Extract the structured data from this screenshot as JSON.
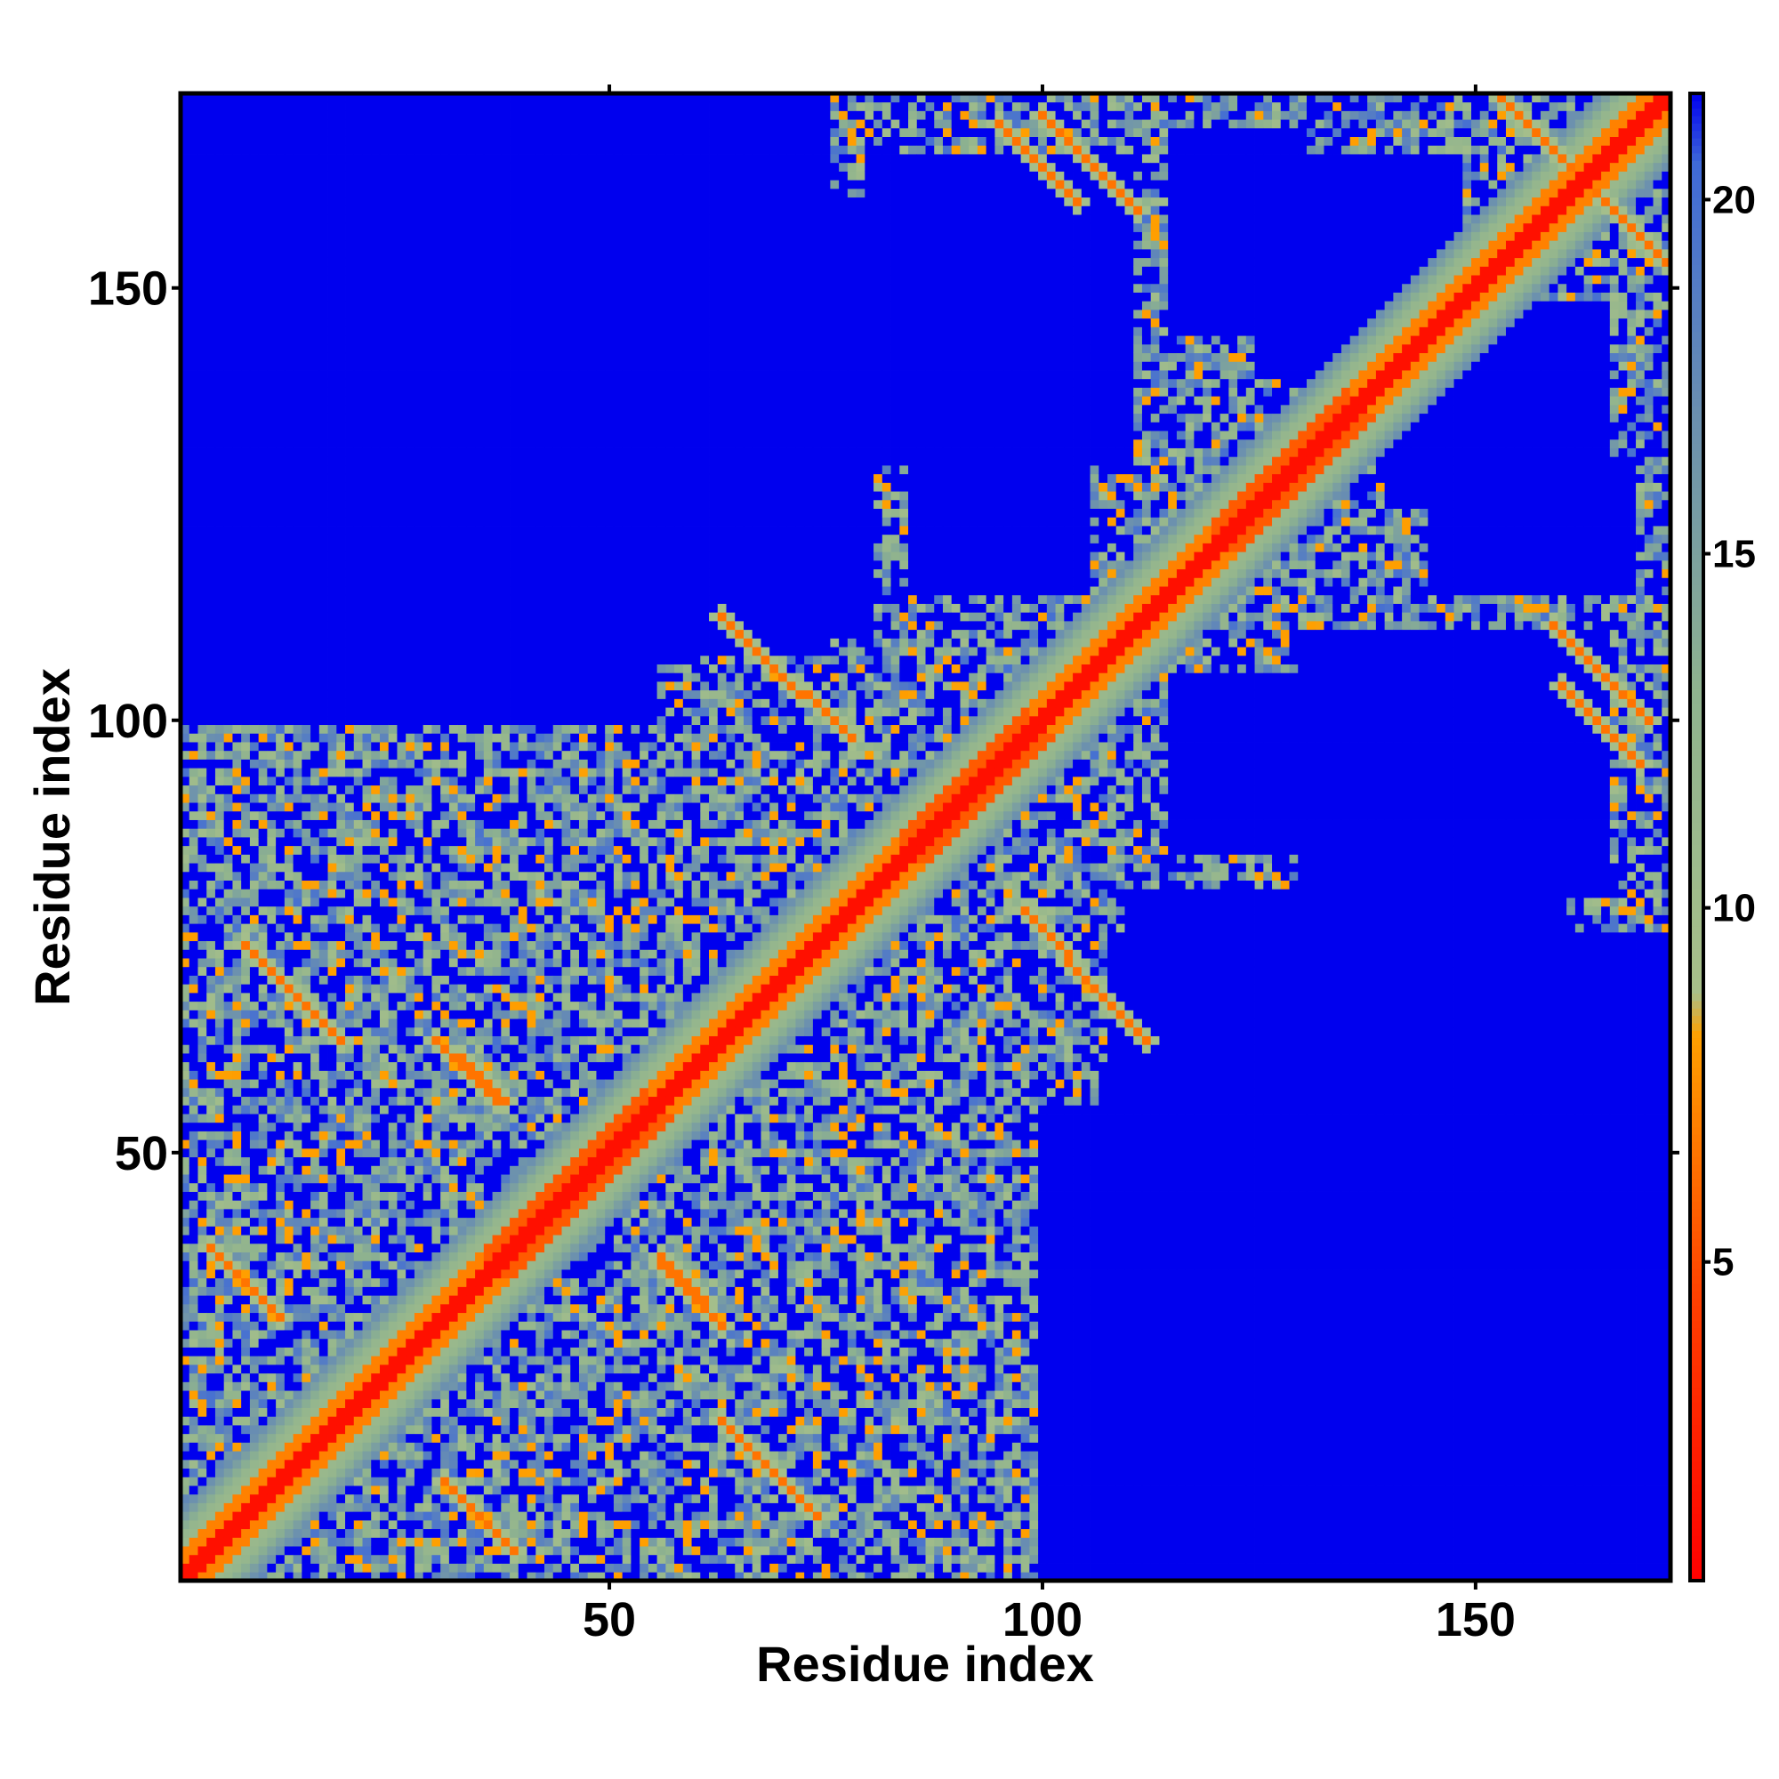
{
  "chart_data": {
    "type": "heatmap",
    "title": "",
    "xlabel": "Residue index",
    "ylabel": "Residue index",
    "n_residues": 172,
    "xlim": [
      0.5,
      172.5
    ],
    "ylim": [
      0.5,
      172.5
    ],
    "x_ticks": [
      50,
      100,
      150
    ],
    "y_ticks": [
      50,
      100,
      150
    ],
    "colorbar": {
      "range": [
        0.5,
        21.5
      ],
      "ticks": [
        5,
        10,
        15,
        20
      ],
      "stops": [
        {
          "value": 0.5,
          "color": "#ff0000"
        },
        {
          "value": 4.5,
          "color": "#ff4000"
        },
        {
          "value": 8.2,
          "color": "#ffa000"
        },
        {
          "value": 8.8,
          "color": "#a8c08a"
        },
        {
          "value": 13.0,
          "color": "#8fb38e"
        },
        {
          "value": 17.0,
          "color": "#6a8fb0"
        },
        {
          "value": 20.5,
          "color": "#3f6ad8"
        },
        {
          "value": 21.5,
          "color": "#0000ee"
        }
      ]
    },
    "background_value": 21.5,
    "description_of_values": "Pairwise residue distance map, symmetric; diagonal near 0 (red), background above 20 (blue)",
    "structural_elements": [
      {
        "kind": "diagonal",
        "from": 1,
        "to": 172
      },
      {
        "kind": "helix_band",
        "from": 36,
        "to": 54
      },
      {
        "kind": "helix_band",
        "from": 84,
        "to": 98
      },
      {
        "kind": "helix_band",
        "from": 120,
        "to": 135
      },
      {
        "kind": "contact_strip",
        "i_start": 100,
        "j_start": 170,
        "length": 12,
        "dir": "anti"
      },
      {
        "kind": "contact_strip",
        "i_start": 153,
        "j_start": 172,
        "length": 20,
        "dir": "anti"
      },
      {
        "kind": "contact_strip",
        "i_start": 160,
        "j_start": 104,
        "length": 10,
        "dir": "anti"
      },
      {
        "kind": "contact_strip",
        "i_start": 73,
        "j_start": 103,
        "length": 6,
        "dir": "anti"
      },
      {
        "kind": "contact_strip",
        "i_start": 103,
        "j_start": 72,
        "length": 10,
        "dir": "anti"
      },
      {
        "kind": "contact_strip",
        "i_start": 8,
        "j_start": 74,
        "length": 12,
        "dir": "anti"
      },
      {
        "kind": "contact_strip",
        "i_start": 30,
        "j_start": 63,
        "length": 8,
        "dir": "anti"
      },
      {
        "kind": "contact_strip",
        "i_start": 56,
        "j_start": 38,
        "length": 6,
        "dir": "anti"
      },
      {
        "kind": "contact_strip",
        "i_start": 31,
        "j_start": 12,
        "length": 9,
        "dir": "anti"
      }
    ],
    "blue_regions": [
      {
        "i": [
          1,
          10
        ],
        "j": [
          125,
          172
        ]
      },
      {
        "i": [
          15,
          75
        ],
        "j": [
          108,
          172
        ]
      },
      {
        "i": [
          100,
          172
        ],
        "j": [
          1,
          55
        ]
      },
      {
        "i": [
          110,
          160
        ],
        "j": [
          55,
          80
        ]
      },
      {
        "i": [
          115,
          140
        ],
        "j": [
          85,
          105
        ]
      },
      {
        "i": [
          125,
          148
        ],
        "j": [
          140,
          165
        ]
      },
      {
        "i": [
          145,
          168
        ],
        "j": [
          115,
          130
        ]
      },
      {
        "i": [
          80,
          110
        ],
        "j": [
          130,
          165
        ]
      }
    ]
  }
}
